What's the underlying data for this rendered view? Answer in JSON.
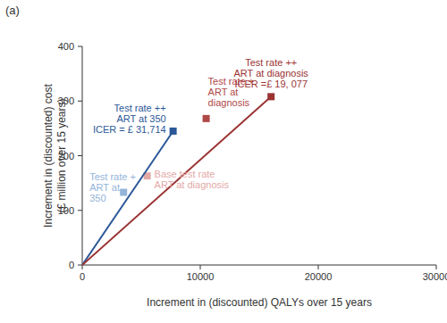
{
  "chart_data": {
    "type": "scatter",
    "title": "(a)",
    "x_label": "Increment in (discounted) QALYs over 15 years",
    "y_label": "Increment in (discounted) cost\n(£ million over 15 years)",
    "xlim": [
      0,
      30000
    ],
    "ylim": [
      0,
      400
    ],
    "xticks": [
      0,
      10000,
      20000,
      30000
    ],
    "yticks": [
      0,
      100,
      200,
      300,
      400
    ],
    "grid": false,
    "series": [
      {
        "name": "Test rate ++\nART at 350",
        "annotation": "ICER = £ 31,714",
        "color": "#2b5797",
        "marker": "square",
        "x": [
          7700
        ],
        "values": [
          245
        ]
      },
      {
        "name": "Test rate +\nART at\n350",
        "color": "#93b3d9",
        "marker": "square",
        "x": [
          3500
        ],
        "values": [
          133
        ]
      },
      {
        "name": "Base test rate\nART at diagnosis",
        "color": "#e3a9a6",
        "marker": "square",
        "x": [
          5500
        ],
        "values": [
          163
        ]
      },
      {
        "name": "Test rate +\nART at\ndiagnosis",
        "color": "#b04848",
        "marker": "square",
        "x": [
          10500
        ],
        "values": [
          268
        ]
      },
      {
        "name": "Test rate ++\nART at diagnosis",
        "annotation": "ICER =£ 19, 077",
        "color": "#9b3333",
        "marker": "square",
        "x": [
          16000
        ],
        "values": [
          308
        ]
      },
      {
        "type": "line",
        "color": "#2b5797",
        "line_style": "solid",
        "x": [
          0,
          7700
        ],
        "values": [
          0,
          245
        ]
      },
      {
        "type": "line",
        "color": "#9b3333",
        "line_style": "solid",
        "x": [
          0,
          16000
        ],
        "values": [
          0,
          308
        ]
      }
    ]
  }
}
